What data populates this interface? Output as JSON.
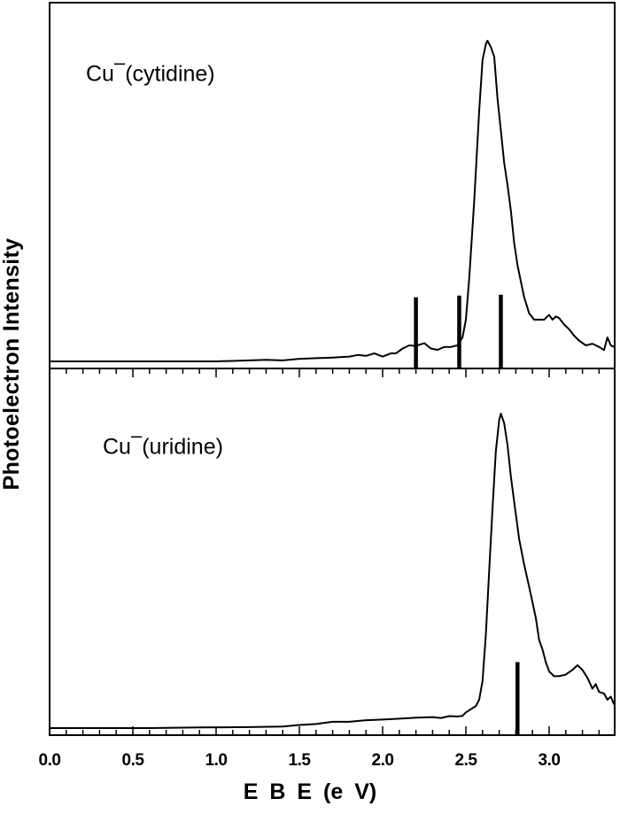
{
  "chart_data": [
    {
      "type": "line",
      "title": "Cu⁻(cytidine)",
      "panel_label": {
        "base": "Cu",
        "sup": "‒",
        "suffix": "(cytidine)"
      },
      "xlabel": "E B E  (e V)",
      "ylabel": "Photoelectron  Intensity",
      "xlim": [
        0.0,
        3.39
      ],
      "ylim": [
        0,
        1
      ],
      "x": [
        0.0,
        0.2,
        0.4,
        0.6,
        0.8,
        1.0,
        1.2,
        1.3,
        1.4,
        1.5,
        1.6,
        1.7,
        1.8,
        1.85,
        1.9,
        1.95,
        2.0,
        2.05,
        2.08,
        2.12,
        2.16,
        2.2,
        2.25,
        2.29,
        2.33,
        2.37,
        2.41,
        2.45,
        2.48,
        2.5,
        2.52,
        2.55,
        2.58,
        2.6,
        2.62,
        2.63,
        2.65,
        2.67,
        2.69,
        2.71,
        2.73,
        2.75,
        2.77,
        2.79,
        2.81,
        2.83,
        2.85,
        2.88,
        2.91,
        2.94,
        2.97,
        3.0,
        3.02,
        3.04,
        3.06,
        3.09,
        3.12,
        3.15,
        3.18,
        3.22,
        3.26,
        3.3,
        3.33,
        3.35,
        3.37,
        3.39
      ],
      "y": [
        0.0,
        0.0,
        0.0,
        0.0,
        0.0,
        0.0,
        0.003,
        0.005,
        0.003,
        0.008,
        0.01,
        0.012,
        0.015,
        0.02,
        0.017,
        0.025,
        0.015,
        0.025,
        0.025,
        0.04,
        0.05,
        0.048,
        0.057,
        0.04,
        0.036,
        0.045,
        0.045,
        0.05,
        0.075,
        0.13,
        0.26,
        0.5,
        0.78,
        0.94,
        0.99,
        1.0,
        0.98,
        0.95,
        0.82,
        0.72,
        0.62,
        0.55,
        0.47,
        0.37,
        0.3,
        0.25,
        0.2,
        0.15,
        0.13,
        0.13,
        0.13,
        0.145,
        0.13,
        0.14,
        0.135,
        0.115,
        0.1,
        0.08,
        0.065,
        0.05,
        0.055,
        0.045,
        0.035,
        0.075,
        0.05,
        0.045
      ],
      "stick_markers": [
        {
          "x": 2.2,
          "height": 0.2
        },
        {
          "x": 2.46,
          "height": 0.205
        },
        {
          "x": 2.71,
          "height": 0.208
        }
      ]
    },
    {
      "type": "line",
      "title": "Cu⁻(uridine)",
      "panel_label": {
        "base": "Cu",
        "sup": "‒",
        "suffix": "(uridine)"
      },
      "xlabel": "E B E  (e V)",
      "ylabel": "Photoelectron  Intensity",
      "xlim": [
        0.0,
        3.39
      ],
      "ylim": [
        0,
        1
      ],
      "x": [
        0.0,
        0.3,
        0.6,
        0.9,
        1.2,
        1.4,
        1.5,
        1.6,
        1.7,
        1.8,
        1.9,
        2.0,
        2.1,
        2.2,
        2.3,
        2.35,
        2.4,
        2.45,
        2.48,
        2.5,
        2.53,
        2.56,
        2.58,
        2.6,
        2.62,
        2.64,
        2.66,
        2.68,
        2.7,
        2.71,
        2.73,
        2.75,
        2.77,
        2.79,
        2.82,
        2.85,
        2.88,
        2.9,
        2.92,
        2.94,
        2.96,
        2.98,
        3.0,
        3.03,
        3.06,
        3.1,
        3.14,
        3.17,
        3.2,
        3.23,
        3.26,
        3.28,
        3.3,
        3.33,
        3.35,
        3.37,
        3.39
      ],
      "y": [
        0.0,
        0.0,
        0.0,
        0.002,
        0.003,
        0.005,
        0.01,
        0.013,
        0.02,
        0.02,
        0.025,
        0.027,
        0.03,
        0.033,
        0.035,
        0.032,
        0.038,
        0.037,
        0.039,
        0.05,
        0.06,
        0.07,
        0.09,
        0.15,
        0.3,
        0.5,
        0.7,
        0.88,
        0.98,
        1.0,
        0.97,
        0.9,
        0.8,
        0.72,
        0.6,
        0.52,
        0.45,
        0.4,
        0.35,
        0.28,
        0.25,
        0.21,
        0.18,
        0.165,
        0.165,
        0.17,
        0.185,
        0.2,
        0.185,
        0.16,
        0.125,
        0.14,
        0.115,
        0.11,
        0.09,
        0.1,
        0.075
      ],
      "stick_markers": [
        {
          "x": 2.81,
          "height": 0.21
        }
      ]
    }
  ],
  "axes": {
    "x_ticks": [
      "0.0",
      "0.5",
      "1.0",
      "1.5",
      "2.0",
      "2.5",
      "3.0"
    ],
    "x_tick_values": [
      0.0,
      0.5,
      1.0,
      1.5,
      2.0,
      2.5,
      3.0
    ],
    "minor_step": 0.1,
    "xlabel": "E B E  (e V)",
    "ylabel": "Photoelectron  Intensity"
  },
  "labels": {
    "top_base": "Cu",
    "top_sup": "–",
    "top_suffix": "(cytidine)",
    "bottom_base": "Cu",
    "bottom_sup": "–",
    "bottom_suffix": "(uridine)"
  },
  "colors": {
    "line": "#000000",
    "frame": "#000000",
    "background": "#ffffff"
  }
}
